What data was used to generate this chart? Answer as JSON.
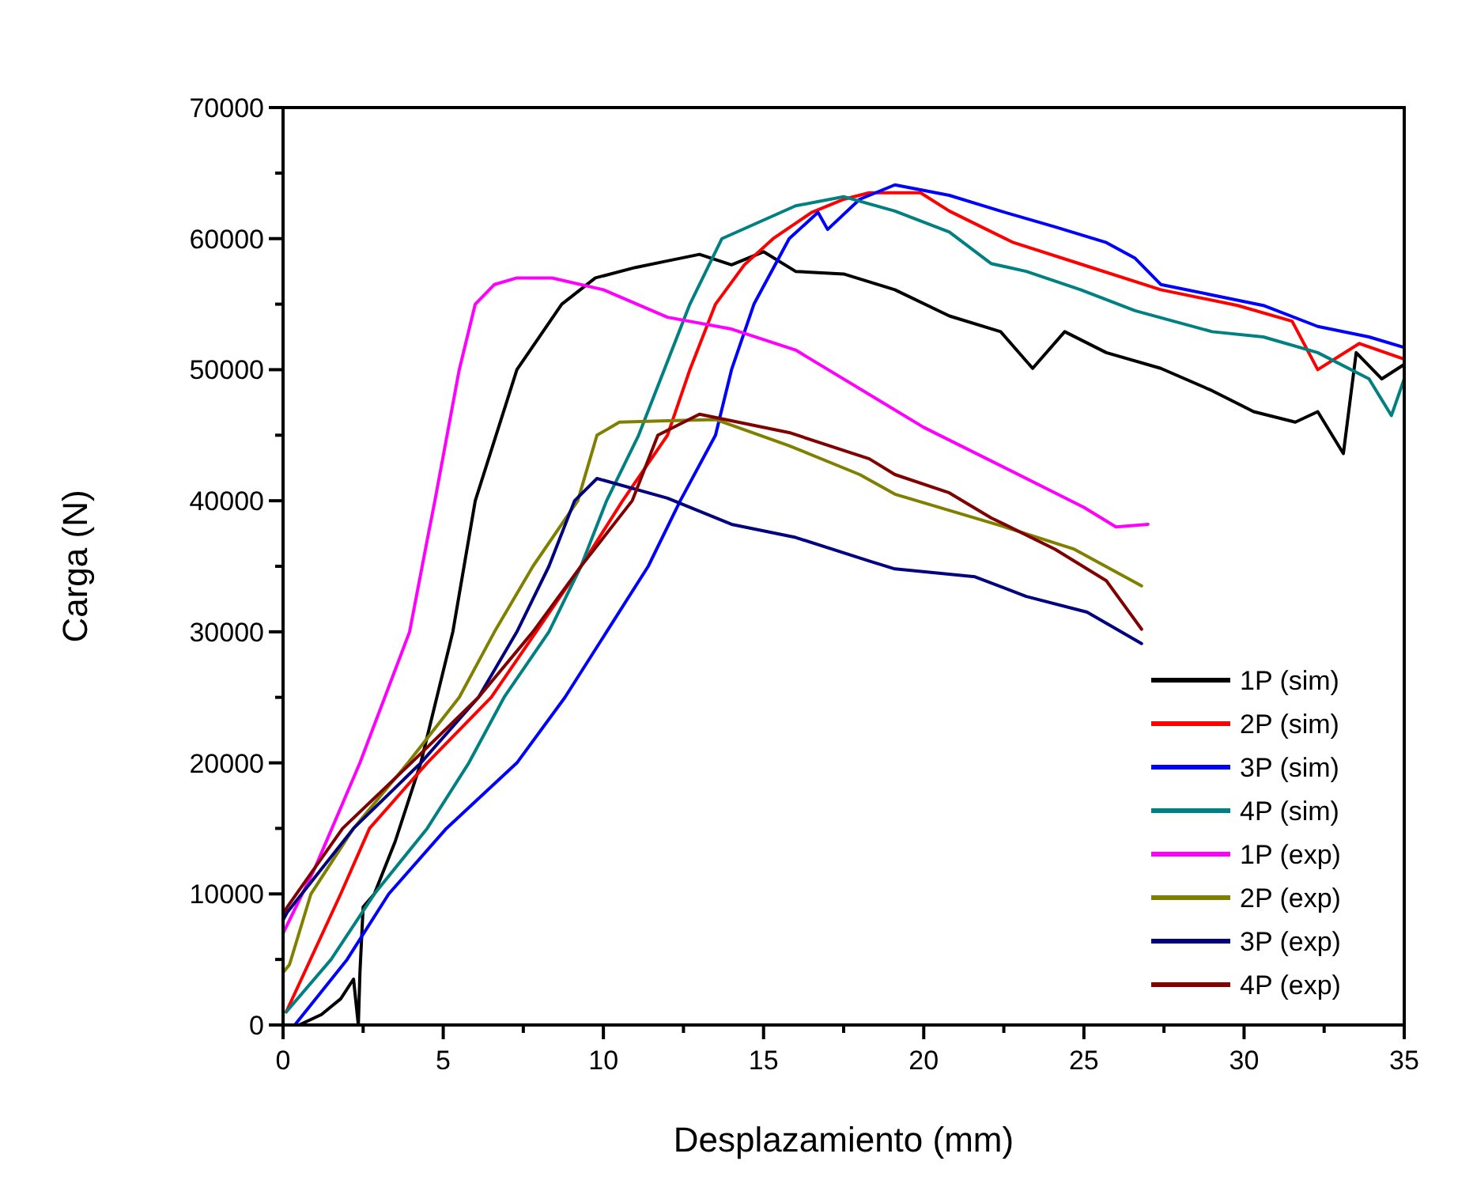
{
  "chart_data": {
    "type": "line",
    "xlabel": "Desplazamiento (mm)",
    "ylabel": "Carga (N)",
    "xlim": [
      0,
      35
    ],
    "ylim": [
      0,
      70000
    ],
    "xticks": [
      0,
      {
        "value": 2.5,
        "label": null
      },
      5,
      {
        "value": 7.5,
        "label": null
      },
      10,
      {
        "value": 12.5,
        "label": null
      },
      15,
      {
        "value": 17.5,
        "label": null
      },
      20,
      {
        "value": 22.5,
        "label": null
      },
      25,
      {
        "value": 27.5,
        "label": null
      },
      30,
      {
        "value": 32.5,
        "label": null
      },
      35
    ],
    "yticks": [
      0,
      {
        "value": 5000,
        "label": null
      },
      10000,
      {
        "value": 15000,
        "label": null
      },
      20000,
      {
        "value": 25000,
        "label": null
      },
      30000,
      {
        "value": 35000,
        "label": null
      },
      40000,
      {
        "value": 45000,
        "label": null
      },
      50000,
      {
        "value": 55000,
        "label": null
      },
      60000,
      {
        "value": 65000,
        "label": null
      },
      70000
    ],
    "grid": false,
    "legend": "bottom right",
    "line_style": "solid",
    "marker": "none",
    "series": [
      {
        "name": "1P (sim)",
        "color": "#000000",
        "x": [
          0.5,
          1.2,
          1.8,
          2.2,
          2.35,
          2.4,
          2.5,
          2.85,
          3.5,
          4.3,
          5.3,
          6.0,
          7.3,
          8.7,
          9.75,
          11,
          12,
          13,
          14,
          15,
          16,
          17.5,
          19.1,
          20.8,
          22.4,
          23.4,
          24.4,
          25.7,
          27.4,
          29.0,
          30.3,
          31.6,
          32.3,
          33.1,
          33.5,
          34.3,
          35
        ],
        "values": [
          0,
          800,
          2000,
          3500,
          0,
          4000,
          9000,
          10000,
          14000,
          20000,
          30000,
          40000,
          50000,
          55000,
          57000,
          57800,
          58300,
          58800,
          58000,
          59000,
          57500,
          57300,
          56100,
          54100,
          52900,
          50100,
          52900,
          51300,
          50100,
          48400,
          46800,
          46000,
          46800,
          43600,
          51300,
          49300,
          50400
        ]
      },
      {
        "name": "2P (sim)",
        "color": "#ff0000",
        "x": [
          0.1,
          1.8,
          2.7,
          4.5,
          6.5,
          7.9,
          9.3,
          10.6,
          12.0,
          12.7,
          13.5,
          14.4,
          15.3,
          16.5,
          17.5,
          18.3,
          19.9,
          20.8,
          22.8,
          25.1,
          27.4,
          29.8,
          31.5,
          32.3,
          33.6,
          35
        ],
        "values": [
          1000,
          10000,
          15000,
          20000,
          25000,
          30000,
          35000,
          40000,
          45000,
          50000,
          55000,
          58000,
          60000,
          62000,
          63000,
          63500,
          63500,
          62100,
          59700,
          57900,
          56100,
          54900,
          53700,
          50000,
          52000,
          50800
        ]
      },
      {
        "name": "3P (sim)",
        "color": "#0000ff",
        "x": [
          0.4,
          2.0,
          3.3,
          5.1,
          7.3,
          8.8,
          10.1,
          11.4,
          12.4,
          13.5,
          14.0,
          14.7,
          15.8,
          16.7,
          17.0,
          18.0,
          19.1,
          20.8,
          22.4,
          24.1,
          25.7,
          26.6,
          27.4,
          29.0,
          30.6,
          32.3,
          33.9,
          35
        ],
        "values": [
          100,
          5000,
          10000,
          15000,
          20000,
          25000,
          30000,
          35000,
          40000,
          45000,
          50000,
          55000,
          60000,
          62000,
          60700,
          63000,
          64100,
          63300,
          62100,
          60900,
          59700,
          58500,
          56500,
          55700,
          54900,
          53300,
          52500,
          51700
        ]
      },
      {
        "name": "4P (sim)",
        "color": "#008080",
        "x": [
          0.1,
          1.5,
          2.85,
          4.5,
          5.8,
          6.9,
          8.3,
          9.3,
          10.1,
          11.1,
          11.9,
          12.7,
          13.7,
          16.0,
          17.5,
          19.1,
          20.8,
          22.1,
          23.2,
          24.9,
          26.6,
          29.0,
          30.6,
          32.3,
          33.9,
          34.6,
          35
        ],
        "values": [
          1000,
          5000,
          10000,
          15000,
          20000,
          25000,
          30000,
          35000,
          40000,
          45000,
          50000,
          55000,
          60000,
          62500,
          63200,
          62100,
          60500,
          58100,
          57500,
          56100,
          54500,
          52900,
          52500,
          51300,
          49300,
          46500,
          49300
        ]
      },
      {
        "name": "1P (exp)",
        "color": "#ff00ff",
        "x": [
          0,
          1.0,
          2.4,
          3.95,
          4.5,
          4.74,
          5.5,
          6.0,
          6.6,
          7.3,
          8.4,
          10,
          12,
          14,
          16,
          20,
          25,
          26,
          27
        ],
        "values": [
          7000,
          12000,
          20000,
          30000,
          37000,
          40000,
          50000,
          55000,
          56500,
          57000,
          57000,
          56100,
          54000,
          53100,
          51500,
          45600,
          39500,
          38000,
          38200
        ]
      },
      {
        "name": "2P (exp)",
        "color": "#808000",
        "x": [
          0,
          0.2,
          0.87,
          2.2,
          3.9,
          5.5,
          6.6,
          7.8,
          9.2,
          9.8,
          10.5,
          12,
          13.5,
          15.8,
          18,
          19.1,
          22.4,
          24.7,
          26.8
        ],
        "values": [
          4000,
          4600,
          10000,
          15000,
          20000,
          25000,
          30000,
          35000,
          40000,
          45000,
          46000,
          46100,
          46200,
          44200,
          42000,
          40500,
          38100,
          36300,
          33500
        ]
      },
      {
        "name": "3P (exp)",
        "color": "#000080",
        "x": [
          0,
          0.13,
          2.2,
          4.3,
          6.1,
          7.3,
          8.3,
          9.1,
          9.8,
          12.0,
          14.0,
          16.0,
          18.3,
          19.1,
          21.6,
          23.2,
          25.1,
          26.8
        ],
        "values": [
          8000,
          8600,
          15000,
          20000,
          25000,
          30000,
          35000,
          40000,
          41700,
          40200,
          38200,
          37200,
          35400,
          34800,
          34200,
          32700,
          31500,
          29100
        ]
      },
      {
        "name": "4P (exp)",
        "color": "#800000",
        "x": [
          0,
          0.13,
          1.86,
          4.0,
          6.1,
          7.8,
          9.3,
          10.9,
          11.7,
          13,
          15.8,
          18.3,
          19.1,
          20.8,
          22.1,
          24.1,
          25.7,
          26.8
        ],
        "values": [
          8500,
          9000,
          15000,
          20000,
          25000,
          30000,
          35000,
          40000,
          45000,
          46600,
          45200,
          43200,
          42000,
          40600,
          38700,
          36300,
          33900,
          30200
        ]
      }
    ]
  }
}
